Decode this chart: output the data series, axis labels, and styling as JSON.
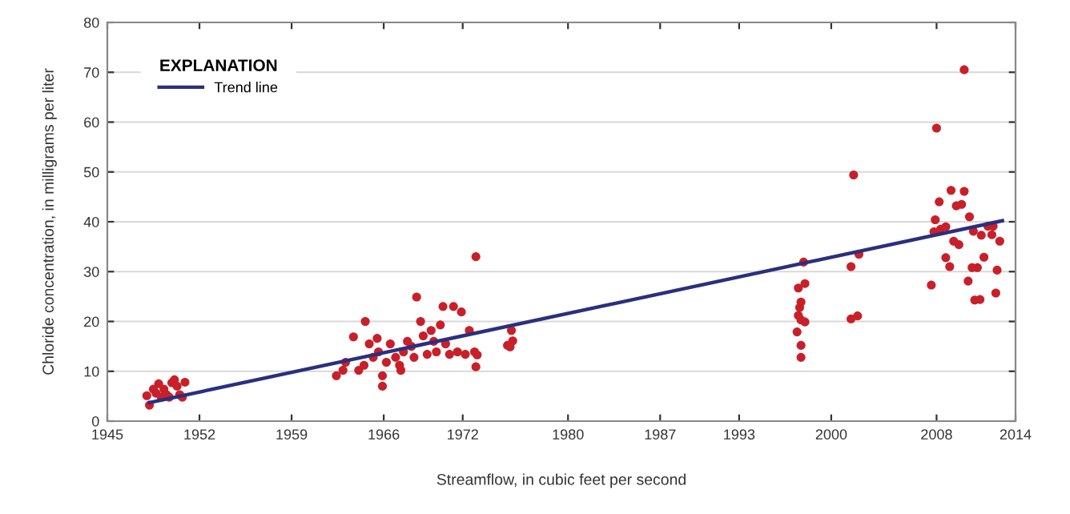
{
  "chart_data": {
    "type": "scatter",
    "xlabel": "Streamflow, in cubic feet per second",
    "ylabel": "Chloride concentration, in milligrams per liter",
    "legend_title": "EXPLANATION",
    "series": [
      {
        "color": "#c8202a",
        "marker": "circle",
        "x": [
          1948.2,
          1948.0,
          1948.7,
          1948.9,
          1948.5,
          1949.3,
          1949.5,
          1949.9,
          1950.1,
          1950.3,
          1950.5,
          1950.7,
          1950.9,
          1949.7,
          1949.1,
          1962.4,
          1962.9,
          1963.1,
          1963.7,
          1964.1,
          1964.5,
          1964.6,
          1964.9,
          1965.2,
          1965.5,
          1965.6,
          1965.9,
          1965.9,
          1966.2,
          1966.5,
          1966.9,
          1967.2,
          1967.3,
          1967.5,
          1967.8,
          1968.1,
          1968.3,
          1968.5,
          1968.8,
          1969.0,
          1969.3,
          1969.6,
          1969.8,
          1970.0,
          1970.3,
          1970.5,
          1970.7,
          1971.0,
          1971.3,
          1971.6,
          1971.9,
          1972.2,
          1972.5,
          1973.0,
          1973.0,
          1972.9,
          1973.1,
          1975.6,
          1975.8,
          1975.7,
          1975.4,
          1997.9,
          1997.5,
          1998.0,
          1997.7,
          1997.6,
          1997.5,
          1997.7,
          1998.0,
          1997.4,
          1997.7,
          1997.7,
          2001.5,
          2002.1,
          2001.5,
          2002.0,
          2001.7,
          2007.6,
          2007.8,
          2008.3,
          2008.7,
          2008.7,
          2009.0,
          2010.4,
          2010.7,
          2011.1,
          2010.9,
          2011.3,
          2011.6,
          2012.2,
          2012.5,
          2012.6,
          2010.1,
          2008.0,
          2009.1,
          2010.1,
          2008.2,
          2009.5,
          2009.9,
          2010.5,
          2007.9,
          2010.8,
          2011.4,
          2011.9,
          2012.3,
          2012.8,
          2009.3,
          2009.7
        ],
        "values": [
          3.2,
          5.1,
          5.6,
          7.5,
          6.4,
          6.4,
          5.3,
          7.7,
          8.3,
          7.0,
          5.3,
          4.8,
          7.8,
          4.8,
          4.8,
          9.1,
          10.2,
          11.8,
          16.9,
          10.2,
          11.2,
          20,
          15.5,
          12.8,
          16.6,
          13.9,
          9.1,
          7,
          11.8,
          15.5,
          12.8,
          11.2,
          10.2,
          13.9,
          16,
          15,
          12.8,
          24.9,
          20,
          17.1,
          13.4,
          18.2,
          16,
          13.9,
          19.3,
          23,
          15.5,
          13.4,
          23,
          13.9,
          21.9,
          13.4,
          18.2,
          33,
          10.9,
          13.9,
          13.3,
          14.9,
          16.1,
          18.2,
          15.2,
          31.9,
          26.7,
          27.6,
          23.9,
          22.8,
          21.2,
          20.3,
          19.9,
          17.9,
          15.2,
          12.8,
          31,
          33.5,
          20.5,
          21.1,
          49.4,
          27.3,
          38,
          38.5,
          39,
          32.8,
          31,
          28.1,
          30.8,
          30.8,
          24.3,
          24.4,
          32.9,
          37.4,
          25.7,
          30.3,
          70.5,
          58.8,
          46.3,
          46.1,
          44,
          43.2,
          43.5,
          41,
          40.4,
          38.1,
          37.3,
          39.1,
          39.1,
          36.1,
          36.1,
          35.4
        ]
      },
      {
        "type": "line",
        "name": "Trend line",
        "color": "#2b2f7f",
        "x": [
          1948.2,
          2013.0
        ],
        "values": [
          3.7,
          40.2
        ]
      }
    ],
    "xlim": [
      1945,
      2014
    ],
    "ylim": [
      0,
      80
    ],
    "xticks": [
      1945,
      1952,
      1959,
      1966,
      1972,
      1980,
      1987,
      1993,
      2000,
      2008,
      2014
    ],
    "yticks": [
      0,
      10,
      20,
      30,
      40,
      50,
      60,
      70,
      80
    ],
    "grid": "y",
    "legend": "top left"
  }
}
